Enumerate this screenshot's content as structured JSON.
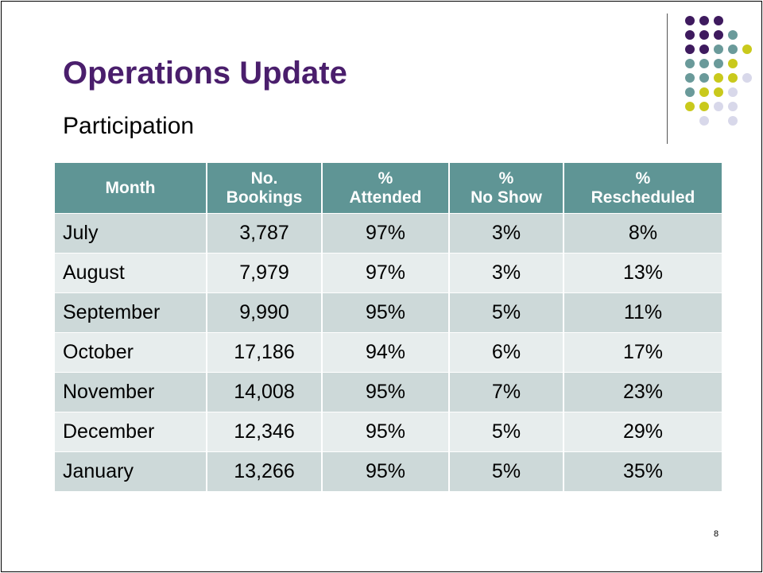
{
  "header": {
    "title": "Operations Update",
    "subtitle": "Participation"
  },
  "table": {
    "columns": [
      [
        "Month"
      ],
      [
        "No.",
        "Bookings"
      ],
      [
        "%",
        "Attended"
      ],
      [
        "%",
        "No Show"
      ],
      [
        "%",
        "Rescheduled"
      ]
    ],
    "rows": [
      [
        "July",
        "3,787",
        "97%",
        "3%",
        "8%"
      ],
      [
        "August",
        "7,979",
        "97%",
        "3%",
        "13%"
      ],
      [
        "September",
        "9,990",
        "95%",
        "5%",
        "11%"
      ],
      [
        "October",
        "17,186",
        "94%",
        "6%",
        "17%"
      ],
      [
        "November",
        "14,008",
        "95%",
        "7%",
        "23%"
      ],
      [
        "December",
        "12,346",
        "95%",
        "5%",
        "29%"
      ],
      [
        "January",
        "13,266",
        "95%",
        "5%",
        "35%"
      ]
    ]
  },
  "footer": {
    "page_number": "8"
  }
}
